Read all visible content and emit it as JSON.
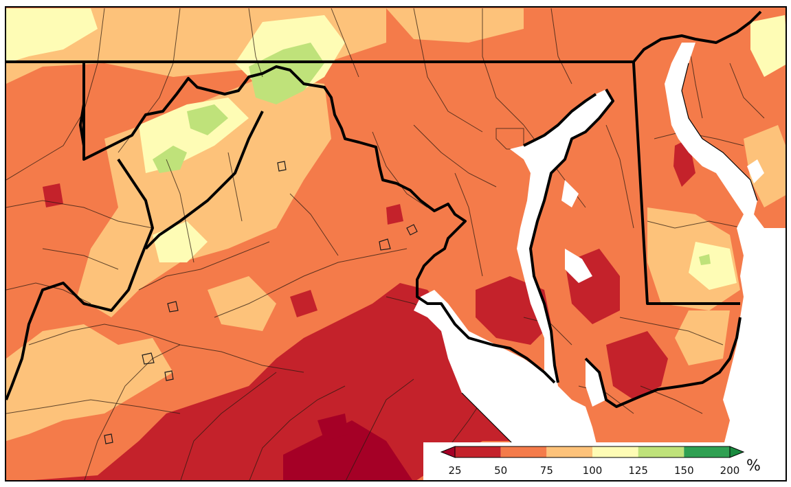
{
  "legend": {
    "bins": [
      {
        "from": 25,
        "to": 50,
        "color": "#c4222b"
      },
      {
        "from": 50,
        "to": 75,
        "color": "#f47b4a"
      },
      {
        "from": 75,
        "to": 100,
        "color": "#fdc27a"
      },
      {
        "from": 100,
        "to": 125,
        "color": "#fefcb5"
      },
      {
        "from": 125,
        "to": 150,
        "color": "#bfe27a"
      },
      {
        "from": 150,
        "to": 200,
        "color": "#2fa052"
      }
    ],
    "under_color": "#a50026",
    "over_color": "#1a8b3f",
    "ticks": [
      "25",
      "50",
      "75",
      "100",
      "125",
      "150",
      "200"
    ],
    "unit": "%"
  },
  "colors": {
    "water": "#ffffff",
    "state_border": "#000000",
    "county_border": "#2a1a10"
  },
  "region_icons": [
    "state-border-icon",
    "county-lines-icon",
    "chesapeake-bay-icon",
    "delaware-bay-icon"
  ]
}
